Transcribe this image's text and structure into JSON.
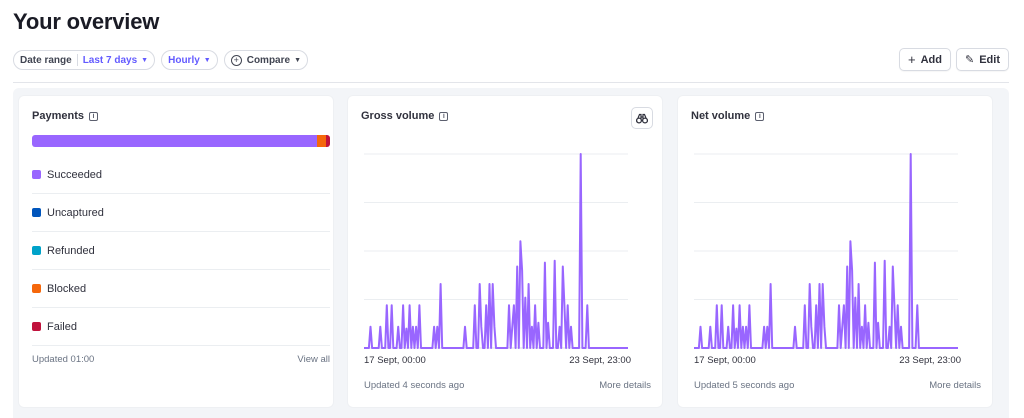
{
  "page": {
    "title": "Your overview"
  },
  "filters": {
    "date_range_label": "Date range",
    "date_range_value": "Last 7 days",
    "interval_value": "Hourly",
    "compare_label": "Compare"
  },
  "actions": {
    "add_label": "Add",
    "edit_label": "Edit"
  },
  "payments": {
    "title": "Payments",
    "bar_segments": [
      {
        "name": "Succeeded",
        "share": 0.955,
        "color": "#9966ff"
      },
      {
        "name": "Blocked",
        "share": 0.03,
        "color": "#f5670b"
      },
      {
        "name": "Failed",
        "share": 0.015,
        "color": "#c0123c"
      }
    ],
    "legend": [
      {
        "label": "Succeeded",
        "color": "#9966ff"
      },
      {
        "label": "Uncaptured",
        "color": "#0055bc"
      },
      {
        "label": "Refunded",
        "color": "#00a2c9"
      },
      {
        "label": "Blocked",
        "color": "#f5670b"
      },
      {
        "label": "Failed",
        "color": "#c0123c"
      }
    ],
    "updated": "Updated 01:00",
    "view_all": "View all"
  },
  "gross_volume": {
    "title": "Gross volume",
    "x_start": "17 Sept, 00:00",
    "x_end": "23 Sept, 23:00",
    "updated": "Updated 4 seconds ago",
    "more": "More details"
  },
  "net_volume": {
    "title": "Net volume",
    "x_start": "17 Sept, 00:00",
    "x_end": "23 Sept, 23:00",
    "updated": "Updated 5 seconds ago",
    "more": "More details"
  },
  "chart_data": [
    {
      "type": "line",
      "title": "Gross volume",
      "line_color": "#9966ff",
      "grid": true,
      "x_range": [
        "17 Sept, 00:00",
        "23 Sept, 23:00"
      ],
      "values": [
        0,
        0,
        0,
        0,
        0.11,
        0,
        0,
        0,
        0,
        0,
        0.11,
        0,
        0,
        0,
        0.22,
        0,
        0,
        0.22,
        0,
        0,
        0,
        0.11,
        0,
        0,
        0.22,
        0,
        0.1,
        0,
        0.22,
        0,
        0.11,
        0,
        0.11,
        0,
        0.22,
        0,
        0,
        0,
        0,
        0,
        0,
        0,
        0,
        0.11,
        0,
        0.11,
        0,
        0.33,
        0,
        0,
        0,
        0,
        0,
        0,
        0,
        0,
        0,
        0,
        0,
        0,
        0,
        0,
        0.11,
        0,
        0,
        0,
        0,
        0,
        0.22,
        0,
        0,
        0.33,
        0.11,
        0,
        0,
        0.22,
        0,
        0.33,
        0,
        0.33,
        0.11,
        0,
        0,
        0,
        0,
        0,
        0,
        0,
        0,
        0.22,
        0,
        0.11,
        0.22,
        0,
        0.42,
        0,
        0.55,
        0.4,
        0,
        0.26,
        0,
        0.33,
        0,
        0.11,
        0,
        0.22,
        0,
        0.13,
        0,
        0,
        0,
        0.44,
        0,
        0.13,
        0,
        0,
        0,
        0.45,
        0,
        0,
        0.11,
        0,
        0.42,
        0.22,
        0,
        0.22,
        0,
        0.11,
        0,
        0,
        0,
        0,
        0,
        1.0,
        0,
        0,
        0,
        0.22,
        0,
        0,
        0,
        0,
        0,
        0,
        0,
        0,
        0,
        0,
        0,
        0,
        0,
        0,
        0,
        0,
        0,
        0,
        0,
        0,
        0,
        0,
        0,
        0,
        0
      ]
    },
    {
      "type": "line",
      "title": "Net volume",
      "line_color": "#9966ff",
      "grid": true,
      "x_range": [
        "17 Sept, 00:00",
        "23 Sept, 23:00"
      ],
      "values": [
        0,
        0,
        0,
        0,
        0.11,
        0,
        0,
        0,
        0,
        0,
        0.11,
        0,
        0,
        0,
        0.22,
        0,
        0,
        0.22,
        0,
        0,
        0,
        0.11,
        0,
        0,
        0.22,
        0,
        0.1,
        0,
        0.22,
        0,
        0.11,
        0,
        0.11,
        0,
        0.22,
        0,
        0,
        0,
        0,
        0,
        0,
        0,
        0,
        0.11,
        0,
        0.11,
        0,
        0.33,
        0,
        0,
        0,
        0,
        0,
        0,
        0,
        0,
        0,
        0,
        0,
        0,
        0,
        0,
        0.11,
        0,
        0,
        0,
        0,
        0,
        0.22,
        0,
        0,
        0.33,
        0.11,
        0,
        0,
        0.22,
        0,
        0.33,
        0,
        0.33,
        0.11,
        0,
        0,
        0,
        0,
        0,
        0,
        0,
        0,
        0.22,
        0,
        0.11,
        0.22,
        0,
        0.42,
        0,
        0.55,
        0.4,
        0,
        0.26,
        0,
        0.33,
        0,
        0.11,
        0,
        0.22,
        0,
        0.13,
        0,
        0,
        0,
        0.44,
        0,
        0.13,
        0,
        0,
        0,
        0.45,
        0,
        0,
        0.11,
        0,
        0.42,
        0.22,
        0,
        0.22,
        0,
        0.11,
        0,
        0,
        0,
        0,
        0,
        1.0,
        0,
        0,
        0,
        0.22,
        0,
        0,
        0,
        0,
        0,
        0,
        0,
        0,
        0,
        0,
        0,
        0,
        0,
        0,
        0,
        0,
        0,
        0,
        0,
        0,
        0,
        0,
        0,
        0,
        0
      ]
    }
  ]
}
